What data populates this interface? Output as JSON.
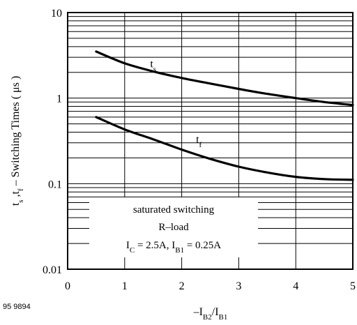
{
  "figure_id": "95 9894",
  "chart_data": {
    "type": "line",
    "xlabel": {
      "main": "–I",
      "sub1": "B2",
      "mid": "/I",
      "sub2": "B1"
    },
    "ylabel": {
      "t1": "t",
      "s1": "s",
      "mid": " ,t",
      "s2": "f",
      "rest": " – Switching Times ( μs )"
    },
    "xlim": [
      0,
      5
    ],
    "ylim": [
      0.01,
      10
    ],
    "yscale": "log",
    "grid": true,
    "x_ticks": [
      0,
      1,
      2,
      3,
      4,
      5
    ],
    "x_tick_labels": [
      "0",
      "1",
      "2",
      "3",
      "4",
      "5"
    ],
    "y_ticks": [
      0.01,
      0.1,
      1,
      10
    ],
    "y_tick_labels": [
      "0.01",
      "0.1",
      "1",
      "10"
    ],
    "series": [
      {
        "name": "ts",
        "label_main": "t",
        "label_sub": "s",
        "label_at": [
          1.5,
          2.3
        ],
        "x": [
          0.5,
          1.0,
          1.5,
          2.0,
          2.5,
          3.0,
          3.5,
          4.0,
          4.5,
          5.0
        ],
        "y": [
          3.5,
          2.55,
          2.05,
          1.72,
          1.48,
          1.28,
          1.12,
          1.0,
          0.9,
          0.83
        ]
      },
      {
        "name": "tf",
        "label_main": "t",
        "label_sub": "f",
        "label_at": [
          2.3,
          0.3
        ],
        "x": [
          0.5,
          1.0,
          1.5,
          2.0,
          2.5,
          3.0,
          3.5,
          4.0,
          4.5,
          5.0
        ],
        "y": [
          0.6,
          0.43,
          0.33,
          0.25,
          0.195,
          0.158,
          0.135,
          0.12,
          0.113,
          0.111
        ]
      }
    ],
    "annotation": {
      "line1": "saturated switching",
      "line2": "R–load",
      "line3": {
        "a": "I",
        "a_sub": "C",
        "b": " = 2.5A, I",
        "b_sub": "B1",
        "c": " = 0.25A"
      }
    }
  }
}
